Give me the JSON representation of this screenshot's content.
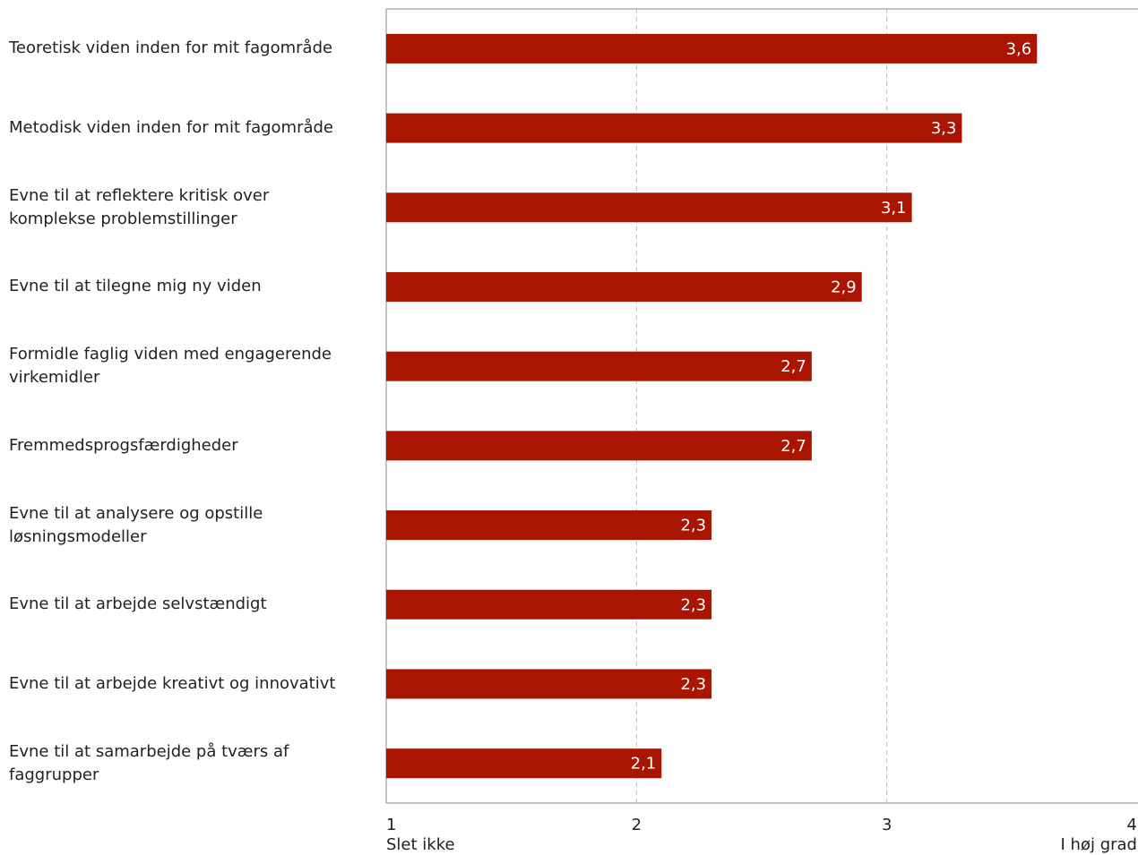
{
  "chart_data": {
    "type": "bar",
    "orientation": "horizontal",
    "categories": [
      "Teoretisk viden inden for mit fagområde",
      "Metodisk viden inden for mit fagområde",
      "Evne til at reflektere kritisk over komplekse problemstillinger",
      "Evne til at tilegne mig ny viden",
      "Formidle faglig viden med engagerende virkemidler",
      "Fremmedsprogsfærdigheder",
      "Evne til at analysere og opstille løsningsmodeller",
      "Evne til at arbejde selvstændigt",
      "Evne til at arbejde kreativt og innovativt",
      "Evne til at samarbejde på tværs af faggrupper"
    ],
    "values": [
      3.6,
      3.3,
      3.1,
      2.9,
      2.7,
      2.7,
      2.3,
      2.3,
      2.3,
      2.1
    ],
    "value_labels": [
      "3,6",
      "3,3",
      "3,1",
      "2,9",
      "2,7",
      "2,7",
      "2,3",
      "2,3",
      "2,3",
      "2,1"
    ],
    "color": "#a91500",
    "xlim": [
      1,
      4
    ],
    "xticks": [
      1,
      2,
      3,
      4
    ],
    "x_end_labels": [
      "Slet ikke",
      "I høj grad"
    ],
    "grid": true
  }
}
